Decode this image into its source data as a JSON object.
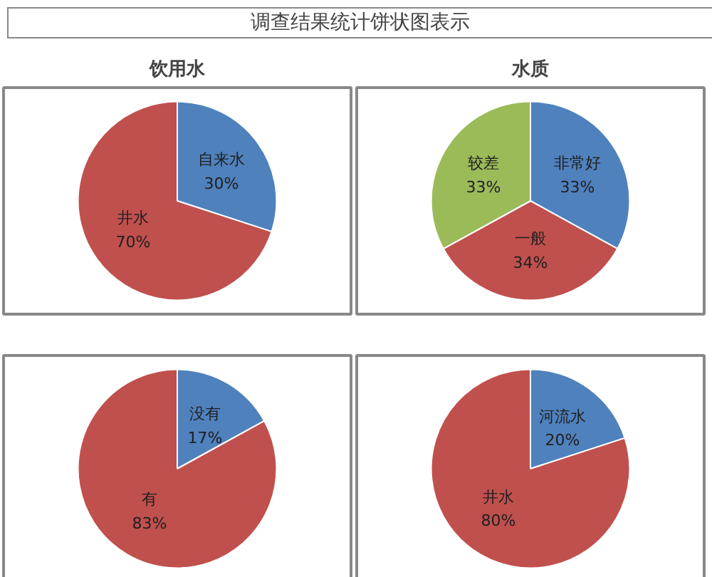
{
  "chart_data": [
    {
      "type": "pie",
      "title": "饮用水",
      "annotations": [
        "调查结果统计饼状图表示"
      ],
      "categories": [
        "自来水",
        "井水"
      ],
      "values": [
        30,
        70
      ],
      "value_labels": [
        "30%",
        "70%"
      ],
      "colors": [
        "#4f81bd",
        "#c0504d"
      ],
      "legend": false
    },
    {
      "type": "pie",
      "title": "水质",
      "categories": [
        "非常好",
        "一般",
        "较差"
      ],
      "values": [
        33,
        34,
        33
      ],
      "value_labels": [
        "33%",
        "34%",
        "33%"
      ],
      "colors": [
        "#4f81bd",
        "#c0504d",
        "#9bbb59"
      ],
      "legend": false
    },
    {
      "type": "pie",
      "categories": [
        "没有",
        "有"
      ],
      "values": [
        17,
        83
      ],
      "value_labels": [
        "17%",
        "83%"
      ],
      "colors": [
        "#4f81bd",
        "#c0504d"
      ],
      "legend": false
    },
    {
      "type": "pie",
      "categories": [
        "河流水",
        "井水"
      ],
      "values": [
        20,
        80
      ],
      "value_labels": [
        "20%",
        "80%"
      ],
      "colors": [
        "#4f81bd",
        "#c0504d"
      ],
      "legend": false
    }
  ]
}
